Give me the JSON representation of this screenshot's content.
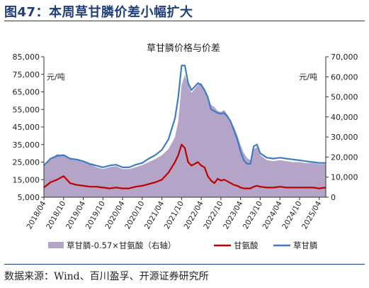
{
  "figure": {
    "title": "图47：本周草甘膦价差小幅扩大",
    "source": "数据来源：Wind、百川盈孚、开源证券研究所"
  },
  "colors": {
    "title": "#1f3f7a",
    "spread_fill": "#b3a4c8",
    "glyphosate_acid": "#c00000",
    "glyphosate": "#3e7cc4"
  },
  "chart_data": {
    "type": "line",
    "title": "草甘膦价格与价差",
    "left_unit": "元/吨",
    "right_unit": "元/吨",
    "y_left_lim": [
      5000,
      85000
    ],
    "y_left_ticks": [
      "5,000",
      "15,000",
      "25,000",
      "35,000",
      "45,000",
      "55,000",
      "65,000",
      "75,000",
      "85,000"
    ],
    "y_right_lim": [
      0,
      70000
    ],
    "y_right_ticks": [
      "0",
      "10,000",
      "20,000",
      "30,000",
      "40,000",
      "50,000",
      "60,000",
      "70,000"
    ],
    "x_lim": [
      "2018-04",
      "2025-06"
    ],
    "x_ticks": [
      "2018/04",
      "2018/10",
      "2019/04",
      "2019/10",
      "2020/04",
      "2020/10",
      "2021/04",
      "2021/10",
      "2022/04",
      "2022/10",
      "2023/04",
      "2023/10",
      "2024/04",
      "2024/10",
      "2025/04"
    ],
    "grid": false,
    "legend_position": "bottom",
    "series": [
      {
        "name": "草甘膦-0.57×甘氨酸（右轴）",
        "type": "area",
        "axis": "right",
        "x": [
          "2018-04",
          "2018-06",
          "2018-08",
          "2018-10",
          "2018-12",
          "2019-02",
          "2019-04",
          "2019-06",
          "2019-08",
          "2019-10",
          "2019-12",
          "2020-02",
          "2020-04",
          "2020-06",
          "2020-08",
          "2020-10",
          "2020-12",
          "2021-02",
          "2021-04",
          "2021-06",
          "2021-08",
          "2021-09",
          "2021-10",
          "2021-11",
          "2021-12",
          "2022-01",
          "2022-02",
          "2022-03",
          "2022-04",
          "2022-05",
          "2022-06",
          "2022-07",
          "2022-08",
          "2022-09",
          "2022-10",
          "2022-11",
          "2022-12",
          "2023-01",
          "2023-02",
          "2023-03",
          "2023-04",
          "2023-05",
          "2023-06",
          "2023-07",
          "2023-08",
          "2023-09",
          "2023-10",
          "2023-12",
          "2024-02",
          "2024-04",
          "2024-06",
          "2024-08",
          "2024-10",
          "2024-12",
          "2025-02",
          "2025-04",
          "2025-06"
        ],
        "values": [
          15000,
          19000,
          21500,
          21000,
          19000,
          18500,
          17500,
          16500,
          15000,
          14000,
          15000,
          15500,
          14000,
          14000,
          15000,
          16000,
          17500,
          19000,
          21000,
          24000,
          30000,
          38000,
          56000,
          61000,
          56000,
          52000,
          54000,
          56000,
          57000,
          54000,
          50000,
          46000,
          45000,
          43000,
          42500,
          43500,
          41000,
          38000,
          35000,
          31000,
          26000,
          22000,
          19500,
          18500,
          24000,
          25000,
          21000,
          18500,
          18000,
          18500,
          18000,
          17500,
          17500,
          17000,
          17000,
          16500,
          16500
        ]
      },
      {
        "name": "甘氨酸",
        "type": "line",
        "axis": "left",
        "x": [
          "2018-04",
          "2018-06",
          "2018-08",
          "2018-10",
          "2018-12",
          "2019-02",
          "2019-04",
          "2019-06",
          "2019-08",
          "2019-10",
          "2019-12",
          "2020-02",
          "2020-04",
          "2020-06",
          "2020-08",
          "2020-10",
          "2020-12",
          "2021-02",
          "2021-04",
          "2021-06",
          "2021-08",
          "2021-09",
          "2021-10",
          "2021-11",
          "2021-12",
          "2022-01",
          "2022-02",
          "2022-03",
          "2022-04",
          "2022-05",
          "2022-06",
          "2022-07",
          "2022-08",
          "2022-09",
          "2022-10",
          "2022-11",
          "2022-12",
          "2023-01",
          "2023-02",
          "2023-03",
          "2023-04",
          "2023-05",
          "2023-06",
          "2023-07",
          "2023-08",
          "2023-09",
          "2023-10",
          "2023-12",
          "2024-02",
          "2024-04",
          "2024-06",
          "2024-08",
          "2024-10",
          "2024-12",
          "2025-02",
          "2025-04",
          "2025-06"
        ],
        "values": [
          10500,
          13500,
          15000,
          17000,
          13000,
          12000,
          11500,
          11000,
          11000,
          10500,
          10000,
          10500,
          10000,
          10000,
          11000,
          11500,
          12500,
          13500,
          15000,
          19000,
          25000,
          29000,
          35000,
          33000,
          25000,
          23000,
          24000,
          25000,
          23000,
          22000,
          17000,
          14500,
          13000,
          15500,
          14500,
          15000,
          14000,
          13000,
          12000,
          11500,
          10500,
          10000,
          10000,
          10000,
          11000,
          11500,
          11000,
          10500,
          10500,
          11000,
          10500,
          10500,
          10500,
          10500,
          10500,
          10000,
          10500
        ]
      },
      {
        "name": "草甘膦",
        "type": "line",
        "axis": "left",
        "x": [
          "2018-04",
          "2018-06",
          "2018-08",
          "2018-10",
          "2018-12",
          "2019-02",
          "2019-04",
          "2019-06",
          "2019-08",
          "2019-10",
          "2019-12",
          "2020-02",
          "2020-04",
          "2020-06",
          "2020-08",
          "2020-10",
          "2020-12",
          "2021-02",
          "2021-04",
          "2021-06",
          "2021-08",
          "2021-09",
          "2021-10",
          "2021-11",
          "2021-12",
          "2022-01",
          "2022-02",
          "2022-03",
          "2022-04",
          "2022-05",
          "2022-06",
          "2022-07",
          "2022-08",
          "2022-09",
          "2022-10",
          "2022-11",
          "2022-12",
          "2023-01",
          "2023-02",
          "2023-03",
          "2023-04",
          "2023-05",
          "2023-06",
          "2023-07",
          "2023-08",
          "2023-09",
          "2023-10",
          "2023-12",
          "2024-02",
          "2024-04",
          "2024-06",
          "2024-08",
          "2024-10",
          "2024-12",
          "2025-02",
          "2025-04",
          "2025-06"
        ],
        "values": [
          23000,
          27000,
          28500,
          29000,
          27000,
          26500,
          25500,
          24000,
          23000,
          22000,
          23000,
          23500,
          22000,
          22000,
          23500,
          24500,
          27000,
          29000,
          32000,
          38000,
          50000,
          62000,
          80000,
          80000,
          70000,
          66000,
          68000,
          70000,
          69000,
          66000,
          62000,
          55000,
          54000,
          53000,
          52500,
          53000,
          51000,
          48000,
          43000,
          38000,
          31000,
          26000,
          24000,
          24000,
          34000,
          35000,
          30000,
          27500,
          27000,
          27500,
          27000,
          26500,
          26000,
          25500,
          25000,
          24500,
          24500
        ]
      }
    ]
  }
}
